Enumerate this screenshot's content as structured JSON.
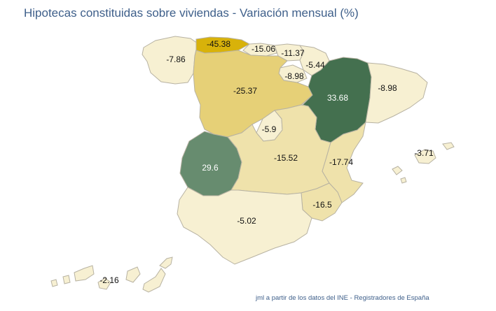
{
  "title": "Hipotecas constituidas sobre viviendas - Variación mensual (%)",
  "source": "jml a partir de los datos del INE - Registradores de España",
  "colors": {
    "very_negative": "#d8b20a",
    "negative_medium": "#e6d077",
    "negative_light": "#efe2ab",
    "negative_slight": "#f7f0d2",
    "positive_medium": "#678c6f",
    "positive_high": "#44704f",
    "border": "#b7b2a2"
  },
  "regions": [
    {
      "name": "Galicia",
      "value": "-7.86"
    },
    {
      "name": "Asturias",
      "value": "-45.38"
    },
    {
      "name": "Cantabria",
      "value": "-15.06"
    },
    {
      "name": "País Vasco",
      "value": "-11.37"
    },
    {
      "name": "Navarra",
      "value": "-5.44"
    },
    {
      "name": "La Rioja",
      "value": "-8.98"
    },
    {
      "name": "Aragón",
      "value": "33.68"
    },
    {
      "name": "Cataluña",
      "value": "-8.98"
    },
    {
      "name": "Castilla y León",
      "value": "-25.37"
    },
    {
      "name": "Madrid",
      "value": "-5.9"
    },
    {
      "name": "Extremadura",
      "value": "29.6"
    },
    {
      "name": "Castilla-La Mancha",
      "value": "-15.52"
    },
    {
      "name": "Comunidad Valenciana",
      "value": "-17.74"
    },
    {
      "name": "Murcia",
      "value": "-16.5"
    },
    {
      "name": "Andalucía",
      "value": "-5.02"
    },
    {
      "name": "Islas Baleares",
      "value": "-3.71"
    },
    {
      "name": "Canarias",
      "value": "-2.16"
    }
  ]
}
